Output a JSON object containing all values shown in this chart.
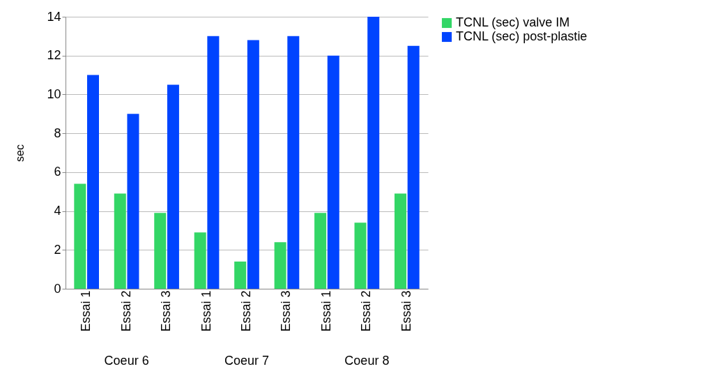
{
  "chart_data": {
    "type": "bar",
    "ylabel": "sec",
    "categories": [
      "Essai 1",
      "Essai 2",
      "Essai 3",
      "Essai 1",
      "Essai 2",
      "Essai 3",
      "Essai 1",
      "Essai 2",
      "Essai 3"
    ],
    "series": [
      {
        "name": "TCNL (sec) valve IM",
        "color": "#33d666",
        "values": [
          5.4,
          4.9,
          3.9,
          2.9,
          1.4,
          2.4,
          3.9,
          3.4,
          4.9
        ]
      },
      {
        "name": "TCNL (sec) post-plastie",
        "color": "#0044ff",
        "values": [
          11,
          9,
          10.5,
          13,
          12.8,
          13,
          12,
          14,
          12.5
        ]
      }
    ],
    "annotations": [
      "Coeur 6",
      "Coeur 7",
      "Coeur 8"
    ],
    "ylim": [
      0,
      14
    ],
    "yticks": [
      0,
      2,
      4,
      6,
      8,
      10,
      12,
      14
    ],
    "grid": "y",
    "legend": "right"
  }
}
